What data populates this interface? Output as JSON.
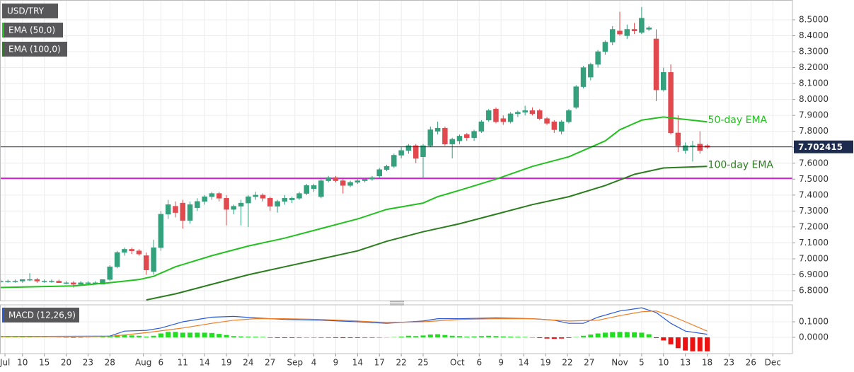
{
  "chart_data": {
    "type": "candlestick",
    "title": "USD/TRY",
    "color_up": "#34a07c",
    "color_down": "#e2494e",
    "open": [
      6.86,
      6.86,
      6.86,
      6.86,
      6.87,
      6.87,
      6.86,
      6.86,
      6.86,
      6.85,
      6.85,
      6.84,
      6.85,
      6.85,
      6.84,
      6.87,
      6.95,
      7.04,
      7.06,
      7.05,
      7.02,
      6.92,
      7.07,
      7.28,
      7.33,
      7.35,
      7.24,
      7.32,
      7.36,
      7.39,
      7.41,
      7.38,
      7.31,
      7.33,
      7.35,
      7.39,
      7.4,
      7.38,
      7.33,
      7.36,
      7.37,
      7.38,
      7.41,
      7.44,
      7.39,
      7.49,
      7.51,
      7.49,
      7.46,
      7.48,
      7.49,
      7.5,
      7.52,
      7.56,
      7.58,
      7.65,
      7.68,
      7.71,
      7.64,
      7.71,
      7.8,
      7.82,
      7.72,
      7.74,
      7.78,
      7.76,
      7.8,
      7.87,
      7.94,
      7.88,
      7.86,
      7.91,
      7.92,
      7.93,
      7.93,
      7.88,
      7.86,
      7.8,
      7.86,
      7.95,
      8.08,
      8.14,
      8.22,
      8.3,
      8.36,
      8.43,
      8.4,
      8.44,
      8.42,
      8.44,
      8.38,
      8.06,
      8.17,
      7.79,
      7.68,
      7.71,
      7.72,
      7.71
    ],
    "high": [
      6.87,
      6.87,
      6.87,
      6.87,
      6.91,
      6.88,
      6.87,
      6.87,
      6.87,
      6.86,
      6.86,
      6.86,
      6.86,
      6.86,
      6.87,
      6.96,
      7.05,
      7.07,
      7.07,
      7.06,
      7.04,
      7.12,
      7.3,
      7.37,
      7.36,
      7.37,
      7.36,
      7.38,
      7.4,
      7.42,
      7.42,
      7.4,
      7.34,
      7.37,
      7.4,
      7.42,
      7.41,
      7.39,
      7.37,
      7.4,
      7.39,
      7.42,
      7.47,
      7.47,
      7.5,
      7.52,
      7.52,
      7.5,
      7.49,
      7.5,
      7.51,
      7.52,
      7.57,
      7.59,
      7.66,
      7.7,
      7.72,
      7.72,
      7.72,
      7.83,
      7.86,
      7.83,
      7.76,
      7.78,
      7.79,
      7.81,
      7.87,
      7.94,
      7.95,
      7.9,
      7.92,
      7.93,
      7.96,
      7.95,
      7.94,
      7.89,
      7.87,
      7.87,
      7.94,
      8.09,
      8.21,
      8.23,
      8.31,
      8.37,
      8.46,
      8.55,
      8.47,
      8.48,
      8.58,
      8.46,
      8.44,
      8.2,
      8.22,
      7.9,
      7.73,
      7.74,
      7.8,
      7.72
    ],
    "low": [
      6.85,
      6.85,
      6.85,
      6.85,
      6.86,
      6.85,
      6.85,
      6.85,
      6.85,
      6.84,
      6.82,
      6.83,
      6.84,
      6.84,
      6.84,
      6.86,
      6.94,
      7.02,
      7.03,
      7.02,
      6.9,
      6.9,
      7.05,
      7.25,
      7.26,
      7.19,
      7.22,
      7.3,
      7.34,
      7.37,
      7.36,
      7.21,
      7.28,
      7.21,
      7.2,
      7.37,
      7.36,
      7.3,
      7.29,
      7.34,
      7.35,
      7.37,
      7.4,
      7.42,
      7.38,
      7.48,
      7.48,
      7.41,
      7.45,
      7.47,
      7.48,
      7.49,
      7.51,
      7.55,
      7.57,
      7.63,
      7.66,
      7.6,
      7.51,
      7.7,
      7.78,
      7.71,
      7.63,
      7.72,
      7.74,
      7.74,
      7.79,
      7.86,
      7.85,
      7.84,
      7.85,
      7.89,
      7.9,
      7.9,
      7.87,
      7.84,
      7.79,
      7.78,
      7.85,
      7.94,
      8.07,
      8.12,
      8.2,
      8.28,
      8.34,
      8.4,
      8.38,
      8.41,
      8.41,
      8.43,
      7.99,
      8.05,
      7.78,
      7.67,
      7.66,
      7.61,
      7.66,
      7.69
    ],
    "close": [
      6.86,
      6.86,
      6.86,
      6.87,
      6.87,
      6.86,
      6.86,
      6.86,
      6.85,
      6.85,
      6.84,
      6.85,
      6.85,
      6.85,
      6.87,
      6.95,
      7.04,
      7.06,
      7.05,
      7.03,
      6.93,
      7.07,
      7.28,
      7.34,
      7.29,
      7.24,
      7.34,
      7.36,
      7.39,
      7.41,
      7.38,
      7.31,
      7.33,
      7.35,
      7.39,
      7.4,
      7.38,
      7.33,
      7.36,
      7.38,
      7.38,
      7.41,
      7.46,
      7.46,
      7.49,
      7.51,
      7.49,
      7.46,
      7.48,
      7.49,
      7.5,
      7.51,
      7.56,
      7.58,
      7.65,
      7.68,
      7.71,
      7.63,
      7.71,
      7.81,
      7.82,
      7.72,
      7.75,
      7.77,
      7.76,
      7.8,
      7.86,
      7.93,
      7.86,
      7.86,
      7.91,
      7.92,
      7.93,
      7.91,
      7.88,
      7.85,
      7.81,
      7.86,
      7.93,
      8.08,
      8.2,
      8.22,
      8.3,
      8.36,
      8.44,
      8.41,
      8.44,
      8.43,
      8.51,
      8.45,
      8.06,
      8.17,
      7.79,
      7.71,
      7.71,
      7.71,
      7.68,
      7.7
    ],
    "ylim": [
      6.738,
      8.624
    ],
    "yticks": [
      {
        "value": 6.8,
        "label": "6.8000"
      },
      {
        "value": 6.9,
        "label": "6.9000"
      },
      {
        "value": 7.0,
        "label": "7.0000"
      },
      {
        "value": 7.1,
        "label": "7.1000"
      },
      {
        "value": 7.2,
        "label": "7.2000"
      },
      {
        "value": 7.3,
        "label": "7.3000"
      },
      {
        "value": 7.4,
        "label": "7.4000"
      },
      {
        "value": 7.5,
        "label": "7.5000"
      },
      {
        "value": 7.6,
        "label": "7.6000"
      },
      {
        "value": 7.7,
        "label": "7.7000"
      },
      {
        "value": 7.8,
        "label": "7.8000"
      },
      {
        "value": 7.9,
        "label": "7.9000"
      },
      {
        "value": 8.0,
        "label": "8.0000"
      },
      {
        "value": 8.1,
        "label": "8.1000"
      },
      {
        "value": 8.2,
        "label": "8.2000"
      },
      {
        "value": 8.3,
        "label": "8.3000"
      },
      {
        "value": 8.4,
        "label": "8.4000"
      },
      {
        "value": 8.5,
        "label": "8.5000"
      }
    ],
    "xlim": [
      -0.085,
      108.7
    ],
    "xticks": [
      {
        "value": 0.6,
        "label": "Jul"
      },
      {
        "value": 3,
        "label": "10"
      },
      {
        "value": 6,
        "label": "15"
      },
      {
        "value": 9,
        "label": "20"
      },
      {
        "value": 12,
        "label": "23"
      },
      {
        "value": 15,
        "label": "28"
      },
      {
        "value": 19.6,
        "label": "Aug"
      },
      {
        "value": 22,
        "label": "6"
      },
      {
        "value": 25,
        "label": "11"
      },
      {
        "value": 28,
        "label": "14"
      },
      {
        "value": 31,
        "label": "19"
      },
      {
        "value": 34,
        "label": "24"
      },
      {
        "value": 37,
        "label": "27"
      },
      {
        "value": 40.4,
        "label": "Sep"
      },
      {
        "value": 43,
        "label": "4"
      },
      {
        "value": 46,
        "label": "9"
      },
      {
        "value": 49,
        "label": "14"
      },
      {
        "value": 52,
        "label": "17"
      },
      {
        "value": 55,
        "label": "22"
      },
      {
        "value": 58,
        "label": "25"
      },
      {
        "value": 62.7,
        "label": "Oct"
      },
      {
        "value": 65.7,
        "label": "6"
      },
      {
        "value": 68.7,
        "label": "9"
      },
      {
        "value": 71.8,
        "label": "14"
      },
      {
        "value": 74.8,
        "label": "19"
      },
      {
        "value": 77.8,
        "label": "22"
      },
      {
        "value": 80.8,
        "label": "27"
      },
      {
        "value": 85,
        "label": "Nov"
      },
      {
        "value": 88,
        "label": "5"
      },
      {
        "value": 91,
        "label": "10"
      },
      {
        "value": 94,
        "label": "13"
      },
      {
        "value": 97,
        "label": "18"
      },
      {
        "value": 100,
        "label": "23"
      },
      {
        "value": 103,
        "label": "26"
      },
      {
        "value": 106,
        "label": "Dec"
      }
    ],
    "grid": true,
    "overlays": [
      {
        "name": "EMA (50,0)",
        "annotation": "50-day EMA",
        "color": "#22c11f",
        "x": [
          0,
          10,
          15,
          19,
          21,
          24,
          29,
          34,
          39,
          44,
          49,
          53,
          58,
          60,
          63,
          68,
          73,
          78,
          83,
          85,
          88,
          91,
          93,
          97
        ],
        "values": [
          6.82,
          6.83,
          6.85,
          6.87,
          6.89,
          6.95,
          7.02,
          7.08,
          7.13,
          7.19,
          7.25,
          7.31,
          7.35,
          7.39,
          7.43,
          7.5,
          7.58,
          7.64,
          7.74,
          7.81,
          7.87,
          7.89,
          7.88,
          7.86
        ]
      },
      {
        "name": "EMA (100,0)",
        "annotation": "100-day EMA",
        "color": "#2b7d1e",
        "x": [
          20,
          24,
          29,
          34,
          39,
          44,
          49,
          53,
          58,
          63,
          68,
          73,
          78,
          83,
          87,
          91,
          97
        ],
        "values": [
          6.742,
          6.78,
          6.84,
          6.9,
          6.95,
          7.0,
          7.05,
          7.11,
          7.17,
          7.22,
          7.28,
          7.34,
          7.39,
          7.46,
          7.53,
          7.57,
          7.58
        ]
      }
    ],
    "price_line": {
      "value": 7.702415,
      "label": "7.702415",
      "color": "#1d2b4f"
    },
    "level": {
      "value": 7.505,
      "color": "#d21fd2"
    },
    "indicator": {
      "name": "MACD (12,26,9)",
      "ylim": [
        -0.105,
        0.205
      ],
      "yticks": [
        {
          "value": 0,
          "label": "0.0000"
        },
        {
          "value": 0.1,
          "label": "0.1000"
        }
      ],
      "macd": {
        "color": "#2a5bd7",
        "x": [
          0,
          15,
          17,
          20,
          22,
          25,
          29,
          32,
          35,
          39,
          44,
          49,
          53,
          58,
          60,
          63,
          68,
          73,
          76,
          78,
          80,
          82,
          85,
          88,
          90,
          92,
          94,
          97
        ],
        "values": [
          0.005,
          0.008,
          0.04,
          0.045,
          0.06,
          0.1,
          0.13,
          0.135,
          0.125,
          0.115,
          0.11,
          0.1,
          0.09,
          0.105,
          0.12,
          0.12,
          0.125,
          0.12,
          0.11,
          0.09,
          0.09,
          0.13,
          0.17,
          0.19,
          0.16,
          0.09,
          0.04,
          0.02
        ]
      },
      "signal": {
        "color": "#f07c22",
        "x": [
          0,
          15,
          20,
          25,
          29,
          32,
          35,
          39,
          44,
          49,
          53,
          58,
          63,
          68,
          73,
          78,
          82,
          85,
          88,
          90,
          92,
          94,
          97
        ],
        "values": [
          0.005,
          0.006,
          0.03,
          0.06,
          0.09,
          0.11,
          0.12,
          0.12,
          0.115,
          0.105,
          0.095,
          0.1,
          0.115,
          0.12,
          0.12,
          0.105,
          0.11,
          0.14,
          0.165,
          0.17,
          0.14,
          0.1,
          0.04
        ]
      },
      "histogram": {
        "color_up": "#22dd22",
        "color_down": "#ee1111",
        "values": [
          0.003,
          0.003,
          0.002,
          0.002,
          0.002,
          0.001,
          0.001,
          0,
          -0.001,
          -0.002,
          -0.003,
          -0.002,
          -0.001,
          0.001,
          0.005,
          0.01,
          0.015,
          0.015,
          0.012,
          0.01,
          0.005,
          0.01,
          0.025,
          0.035,
          0.035,
          0.03,
          0.03,
          0.03,
          0.03,
          0.028,
          0.022,
          0.015,
          0.008,
          0.006,
          0.005,
          0.004,
          0.003,
          -0.003,
          -0.004,
          -0.004,
          -0.004,
          -0.003,
          -0.002,
          -0.002,
          -0.003,
          -0.003,
          -0.004,
          -0.005,
          -0.004,
          -0.004,
          -0.003,
          -0.003,
          -0.002,
          -0.001,
          0.002,
          0.005,
          0.01,
          0.008,
          0.012,
          0.018,
          0.02,
          0.015,
          0.01,
          0.008,
          0.005,
          0.006,
          0.008,
          0.01,
          0.008,
          0.006,
          0.005,
          0.004,
          0.003,
          -0.002,
          -0.005,
          -0.008,
          -0.01,
          -0.008,
          -0.004,
          0.002,
          0.01,
          0.018,
          0.025,
          0.03,
          0.034,
          0.035,
          0.034,
          0.032,
          0.03,
          0.02,
          -0.005,
          -0.02,
          -0.045,
          -0.07,
          -0.085,
          -0.09,
          -0.09,
          -0.09
        ]
      }
    }
  }
}
